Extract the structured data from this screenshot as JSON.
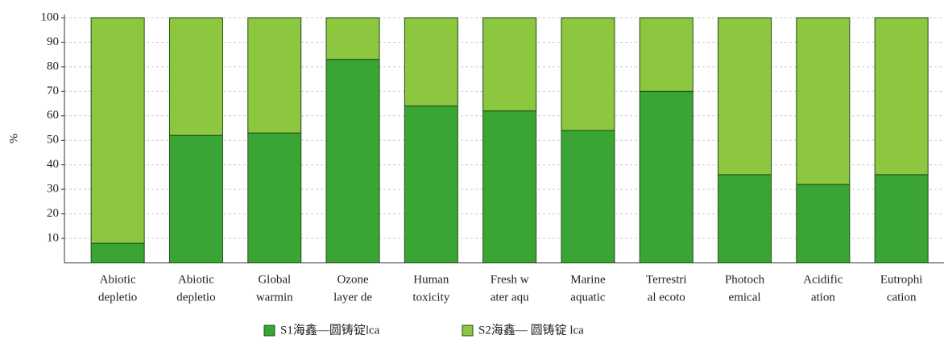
{
  "chart_data": {
    "type": "stacked_bar",
    "y_label": "%",
    "categories": [
      [
        "Abiotic",
        "depletio"
      ],
      [
        "Abiotic",
        "depletio"
      ],
      [
        "Global",
        "warmin"
      ],
      [
        "Ozone",
        "layer de"
      ],
      [
        "Human",
        "toxicity"
      ],
      [
        "Fresh w",
        "ater aqu"
      ],
      [
        "Marine",
        "aquatic"
      ],
      [
        "Terrestri",
        "al ecoto"
      ],
      [
        "Photoch",
        "emical"
      ],
      [
        "Acidific",
        "ation"
      ],
      [
        "Eutrophi",
        "cation"
      ]
    ],
    "series": [
      {
        "name": "S1海鑫—圆铸锭lca",
        "color": "#3aa534",
        "values": [
          8,
          52,
          53,
          83,
          64,
          62,
          54,
          70,
          36,
          32,
          36
        ]
      },
      {
        "name": "S2海鑫— 圆铸锭 lca",
        "color": "#8dc63f",
        "values": [
          92,
          48,
          47,
          17,
          36,
          38,
          46,
          30,
          64,
          68,
          64
        ]
      }
    ],
    "ylim": [
      0,
      100
    ],
    "yticks": [
      10,
      20,
      30,
      40,
      50,
      60,
      70,
      80,
      90,
      100
    ],
    "grid": true
  }
}
